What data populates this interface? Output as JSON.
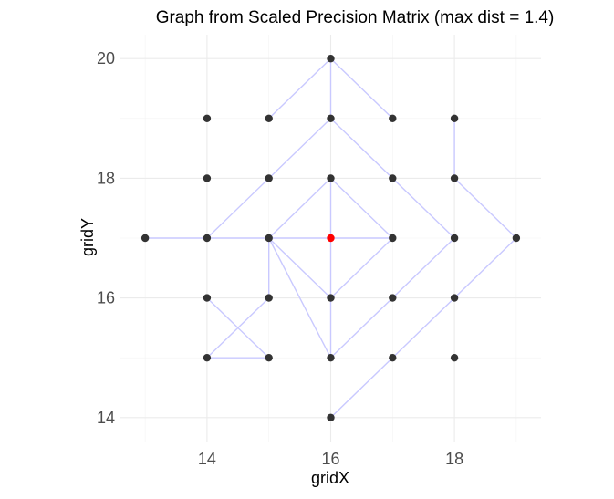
{
  "chart_data": {
    "type": "scatter",
    "title": "Graph from Scaled Precision Matrix (max dist = 1.4)",
    "xlabel": "gridX",
    "ylabel": "gridY",
    "xlim": [
      12.6,
      19.4
    ],
    "ylim": [
      13.6,
      20.4
    ],
    "x_ticks": [
      14,
      16,
      18
    ],
    "y_ticks": [
      14,
      16,
      18,
      20
    ],
    "grid": true,
    "legend": "none",
    "colors": {
      "point": "#333333",
      "highlight": "#ff0000",
      "edge": "#c9c9ff",
      "grid_major": "#ebebeb",
      "grid_minor": "#f3f3f3",
      "axis_text": "#4d4d4d",
      "title_text": "#000000"
    },
    "points": [
      {
        "x": 16,
        "y": 20
      },
      {
        "x": 14,
        "y": 19
      },
      {
        "x": 15,
        "y": 19
      },
      {
        "x": 16,
        "y": 19
      },
      {
        "x": 17,
        "y": 19
      },
      {
        "x": 18,
        "y": 19
      },
      {
        "x": 14,
        "y": 18
      },
      {
        "x": 15,
        "y": 18
      },
      {
        "x": 16,
        "y": 18
      },
      {
        "x": 17,
        "y": 18
      },
      {
        "x": 18,
        "y": 18
      },
      {
        "x": 13,
        "y": 17
      },
      {
        "x": 14,
        "y": 17
      },
      {
        "x": 15,
        "y": 17
      },
      {
        "x": 16,
        "y": 17,
        "highlight": true
      },
      {
        "x": 17,
        "y": 17
      },
      {
        "x": 18,
        "y": 17
      },
      {
        "x": 19,
        "y": 17
      },
      {
        "x": 14,
        "y": 16
      },
      {
        "x": 15,
        "y": 16
      },
      {
        "x": 16,
        "y": 16
      },
      {
        "x": 17,
        "y": 16
      },
      {
        "x": 18,
        "y": 16
      },
      {
        "x": 14,
        "y": 15
      },
      {
        "x": 15,
        "y": 15
      },
      {
        "x": 16,
        "y": 15
      },
      {
        "x": 17,
        "y": 15
      },
      {
        "x": 18,
        "y": 15
      },
      {
        "x": 16,
        "y": 14
      }
    ],
    "edges": [
      [
        [
          16,
          20
        ],
        [
          16,
          19
        ]
      ],
      [
        [
          16,
          20
        ],
        [
          15,
          19
        ]
      ],
      [
        [
          16,
          20
        ],
        [
          17,
          19
        ]
      ],
      [
        [
          16,
          19
        ],
        [
          14,
          17
        ]
      ],
      [
        [
          16,
          19
        ],
        [
          18,
          17
        ]
      ],
      [
        [
          18,
          19
        ],
        [
          18,
          18
        ]
      ],
      [
        [
          18,
          18
        ],
        [
          19,
          17
        ]
      ],
      [
        [
          16,
          18
        ],
        [
          16,
          17
        ]
      ],
      [
        [
          16,
          18
        ],
        [
          15,
          17
        ]
      ],
      [
        [
          16,
          18
        ],
        [
          17,
          17
        ]
      ],
      [
        [
          13,
          17
        ],
        [
          16,
          17
        ]
      ],
      [
        [
          16,
          17
        ],
        [
          17,
          17
        ]
      ],
      [
        [
          16,
          17
        ],
        [
          16,
          16
        ]
      ],
      [
        [
          15,
          17
        ],
        [
          15,
          16
        ]
      ],
      [
        [
          15,
          17
        ],
        [
          16,
          16
        ]
      ],
      [
        [
          17,
          17
        ],
        [
          16,
          16
        ]
      ],
      [
        [
          15,
          17
        ],
        [
          16,
          15
        ]
      ],
      [
        [
          18,
          17
        ],
        [
          16,
          15
        ]
      ],
      [
        [
          16,
          16
        ],
        [
          16,
          15
        ]
      ],
      [
        [
          15,
          16
        ],
        [
          14,
          15
        ]
      ],
      [
        [
          14,
          16
        ],
        [
          15,
          15
        ]
      ],
      [
        [
          14,
          15
        ],
        [
          15,
          15
        ]
      ],
      [
        [
          19,
          17
        ],
        [
          16,
          14
        ]
      ]
    ]
  }
}
